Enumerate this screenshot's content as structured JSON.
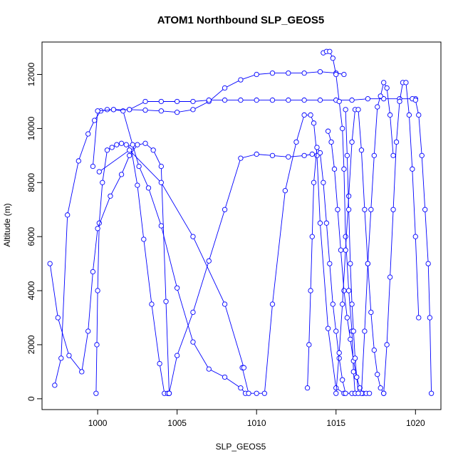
{
  "chart_data": {
    "type": "line",
    "title": "ATOM1 Northbound SLP_GEOS5",
    "xlabel": "SLP_GEOS5",
    "ylabel": "Altitude (m)",
    "xlim": [
      996.5,
      1021.6
    ],
    "ylim": [
      -400,
      13200
    ],
    "xticks": [
      1000,
      1005,
      1010,
      1015,
      1020
    ],
    "yticks": [
      0,
      2000,
      4000,
      6000,
      8000,
      10000,
      12000
    ],
    "grid": false,
    "legend": "none",
    "marker": "open-circle",
    "color": "#0000ff",
    "series": [
      {
        "x": [
          999.9,
          999.95,
          1000.0,
          1000.1,
          1000.3,
          1000.6,
          1000.9,
          1001.2,
          1001.5,
          1001.8,
          1002.1,
          1002.5,
          1002.9,
          1003.4,
          1003.9,
          1004.2,
          1004.4,
          1004.5
        ],
        "y": [
          200,
          2000,
          4000,
          6500,
          8000,
          9200,
          9300,
          9400,
          9450,
          9400,
          9300,
          7900,
          5900,
          3500,
          1300,
          200,
          200,
          200
        ]
      },
      {
        "x": [
          1004.5,
          1005.0,
          1006.0,
          1007.0,
          1008.0,
          1009.0,
          1010.0,
          1011.0,
          1012.0,
          1013.0,
          1013.5
        ],
        "y": [
          200,
          1600,
          3200,
          5100,
          7000,
          8900,
          9050,
          9000,
          8950,
          9000,
          9050
        ]
      },
      {
        "x": [
          997.0,
          997.5,
          998.2,
          999.0,
          999.4,
          999.7,
          1000.0,
          1000.8,
          1001.5,
          1002.0,
          1002.5,
          1003.0,
          1003.5,
          1004.0,
          1004.3,
          1004.5
        ],
        "y": [
          5000,
          3000,
          1600,
          1000,
          2500,
          4700,
          6300,
          7500,
          8300,
          9000,
          9400,
          9450,
          9200,
          8600,
          3600,
          200
        ]
      },
      {
        "x": [
          997.3,
          997.7,
          998.1,
          998.8,
          999.4,
          999.8,
          1000.2,
          1000.6,
          1001.0,
          1001.6,
          1002.2,
          1002.6,
          1003.2,
          1004.0,
          1005.0,
          1006.0,
          1007.0,
          1008.0,
          1009.0,
          1009.3
        ],
        "y": [
          500,
          1500,
          6800,
          8800,
          9800,
          10300,
          10650,
          10700,
          10700,
          10650,
          9400,
          8600,
          7800,
          6400,
          4100,
          2100,
          1100,
          800,
          400,
          200
        ]
      },
      {
        "x": [
          999.7,
          1000.0,
          1001.0,
          1002.0,
          1003.0,
          1004.0,
          1005.0,
          1006.0,
          1007.0,
          1008.0,
          1009.0,
          1010.0,
          1011.0,
          1012.0,
          1013.0,
          1014.0,
          1015.0,
          1015.5
        ],
        "y": [
          8600,
          10650,
          10700,
          10700,
          10680,
          10650,
          10600,
          10700,
          11000,
          11500,
          11800,
          12000,
          12050,
          12050,
          12050,
          12100,
          12050,
          12000
        ]
      },
      {
        "x": [
          1009.1,
          1009.5,
          1010.0,
          1010.5,
          1011.0,
          1011.8,
          1012.5,
          1013.0,
          1013.4,
          1013.6,
          1013.8,
          1014.0,
          1014.5,
          1015.0,
          1015.5,
          1016.0,
          1016.2
        ],
        "y": [
          1150,
          200,
          200,
          200,
          3500,
          7700,
          9500,
          10500,
          10500,
          10200,
          9000,
          6500,
          2600,
          400,
          200,
          200,
          200
        ]
      },
      {
        "x": [
          1002.0,
          1003.0,
          1004.0,
          1005.0,
          1006.0,
          1007.0,
          1008.0,
          1009.0,
          1010.0,
          1011.0,
          1012.0,
          1013.0,
          1014.0,
          1015.0,
          1016.0,
          1017.0,
          1018.0,
          1019.0,
          1020.0
        ],
        "y": [
          10700,
          11000,
          11000,
          11000,
          11000,
          11050,
          11050,
          11050,
          11050,
          11050,
          11050,
          11050,
          11050,
          11050,
          11050,
          11100,
          11100,
          11100,
          11100
        ]
      },
      {
        "x": [
          1013.2,
          1013.3,
          1013.4,
          1013.5,
          1013.6,
          1013.8,
          1014.0,
          1014.2,
          1014.4,
          1014.6,
          1014.8,
          1015.0,
          1015.2,
          1015.4,
          1015.6
        ],
        "y": [
          400,
          2000,
          4000,
          6000,
          8000,
          9300,
          9100,
          8000,
          6500,
          5000,
          3500,
          2500,
          1500,
          700,
          200
        ]
      },
      {
        "x": [
          1014.2,
          1014.4,
          1014.6,
          1014.8,
          1015.0,
          1015.2,
          1015.4,
          1015.5,
          1015.6,
          1015.8,
          1016.0,
          1016.1,
          1016.2
        ],
        "y": [
          12800,
          12850,
          12850,
          12600,
          12000,
          11000,
          10000,
          8500,
          6000,
          4000,
          2500,
          1000,
          200
        ]
      },
      {
        "x": [
          1014.5,
          1014.7,
          1014.9,
          1015.1,
          1015.3,
          1015.5,
          1015.7,
          1015.9,
          1016.1,
          1016.3,
          1016.5,
          1016.7,
          1016.9,
          1017.1
        ],
        "y": [
          9900,
          9500,
          8500,
          7000,
          5500,
          4000,
          3000,
          2200,
          1400,
          800,
          400,
          200,
          200,
          200
        ]
      },
      {
        "x": [
          1016.6,
          1016.8,
          1017.0,
          1017.2,
          1017.4,
          1017.6,
          1017.8,
          1018.0,
          1018.2,
          1018.4,
          1018.6
        ],
        "y": [
          200,
          2500,
          5000,
          7000,
          9000,
          10800,
          11200,
          11700,
          11500,
          10500,
          9000
        ]
      },
      {
        "x": [
          1018.0,
          1018.2,
          1018.4,
          1018.6,
          1018.8,
          1019.0,
          1019.2,
          1019.4,
          1019.6,
          1019.8,
          1020.0,
          1020.2
        ],
        "y": [
          200,
          2000,
          4500,
          7000,
          9500,
          11000,
          11700,
          11700,
          10500,
          8500,
          6000,
          3000
        ]
      },
      {
        "x": [
          1019.8,
          1020.0,
          1020.2,
          1020.4,
          1020.6,
          1020.8,
          1020.9,
          1021.0
        ],
        "y": [
          11100,
          11050,
          10500,
          9000,
          7000,
          5000,
          3000,
          200
        ]
      },
      {
        "x": [
          1000.1,
          1002.0,
          1004.0,
          1006.0,
          1008.0,
          1009.2
        ],
        "y": [
          8400,
          9200,
          8000,
          6000,
          3500,
          1150
        ]
      },
      {
        "x": [
          1015.0,
          1015.2,
          1015.4,
          1015.6,
          1015.8,
          1016.0,
          1016.2,
          1016.4,
          1016.6,
          1016.8,
          1017.0,
          1017.2,
          1017.4,
          1017.6,
          1017.8,
          1018.0
        ],
        "y": [
          200,
          1700,
          3500,
          5500,
          7500,
          9500,
          10700,
          10700,
          9200,
          7000,
          5000,
          3200,
          1800,
          900,
          400,
          200
        ]
      },
      {
        "x": [
          1015.6,
          1015.7,
          1015.8,
          1015.9,
          1016.0,
          1016.1,
          1016.2,
          1016.3,
          1016.4
        ],
        "y": [
          10700,
          9000,
          7000,
          5000,
          3500,
          2500,
          1500,
          800,
          200
        ]
      }
    ]
  }
}
